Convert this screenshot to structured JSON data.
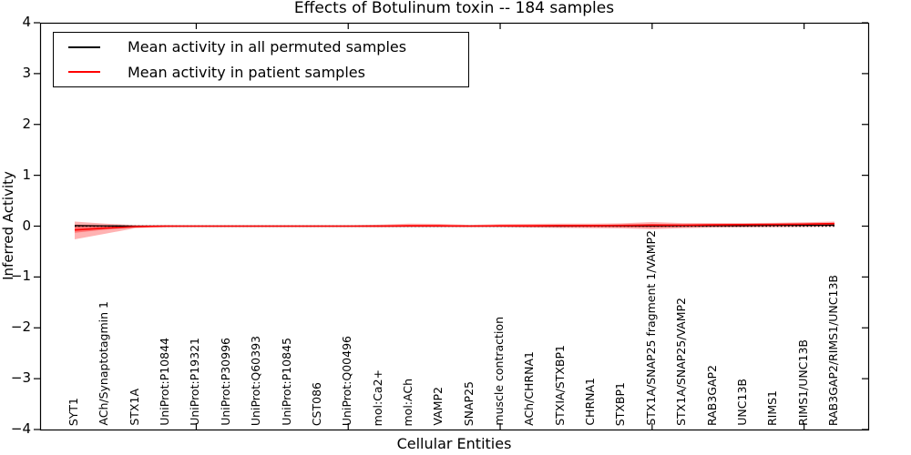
{
  "title": "Effects of Botulinum toxin -- 184 samples",
  "axes": {
    "x_label": "Cellular Entities",
    "y_label": "Inferred Activity",
    "y_ticks": [
      "4",
      "3",
      "2",
      "1",
      "0",
      "−1",
      "−2",
      "−3",
      "−4"
    ]
  },
  "legend": {
    "items": [
      {
        "label": "Mean activity in all permuted samples",
        "color": "#000000"
      },
      {
        "label": "Mean activity in patient samples",
        "color": "#ff0000"
      }
    ]
  },
  "chart_data": {
    "type": "line",
    "title": "Effects of Botulinum toxin -- 184 samples",
    "xlabel": "Cellular Entities",
    "ylabel": "Inferred Activity",
    "ylim": [
      -4,
      4
    ],
    "grid": false,
    "legend_position": "upper left",
    "categories": [
      "SYT1",
      "ACh/Synaptotagmin 1",
      "STX1A",
      "UniProt:P10844",
      "UniProt:P19321",
      "UniProt:P30996",
      "UniProt:Q60393",
      "UniProt:P10845",
      "CST086",
      "UniProt:Q00496",
      "mol:Ca2+",
      "mol:ACh",
      "VAMP2",
      "SNAP25",
      "muscle contraction",
      "ACh/CHRNA1",
      "STXIA/STXBP1",
      "CHRNA1",
      "STXBP1",
      "STX1A/SNAP25 fragment 1/VAMP2",
      "STX1A/SNAP25/VAMP2",
      "RAB3GAP2",
      "UNC13B",
      "RIMS1",
      "RIMS1/UNC13B",
      "RAB3GAP2/RIMS1/UNC13B"
    ],
    "x_major_tick_indices": [
      4,
      9,
      14,
      19,
      24
    ],
    "series": [
      {
        "name": "Mean activity in all permuted samples",
        "color": "#000000",
        "values": [
          0.01,
          0.005,
          0,
          0,
          0,
          0,
          0,
          0,
          0,
          0,
          0,
          0,
          0,
          0,
          0,
          0,
          0,
          0.005,
          0.005,
          0.005,
          0.01,
          0.01,
          0.01,
          0.015,
          0.015,
          0.02
        ]
      },
      {
        "name": "Mean activity in patient samples",
        "color": "#ff0000",
        "values": [
          -0.075,
          -0.04,
          -0.01,
          0,
          0,
          0,
          0,
          0,
          0,
          0,
          0,
          0.005,
          0.005,
          0,
          0.005,
          0.005,
          0.01,
          0.01,
          0.015,
          0.02,
          0.02,
          0.025,
          0.03,
          0.035,
          0.04,
          0.05
        ]
      }
    ],
    "band": {
      "color": "#ff0000",
      "outer_opacity": 0.3,
      "inner_opacity": 0.35,
      "upper": [
        0.09,
        0.05,
        0.02,
        0.02,
        0.015,
        0.015,
        0.015,
        0.015,
        0.015,
        0.015,
        0.03,
        0.05,
        0.045,
        0.025,
        0.04,
        0.045,
        0.05,
        0.05,
        0.055,
        0.08,
        0.06,
        0.06,
        0.06,
        0.065,
        0.075,
        0.09
      ],
      "lower": [
        -0.26,
        -0.15,
        -0.04,
        -0.02,
        -0.015,
        -0.015,
        -0.015,
        -0.015,
        -0.015,
        -0.015,
        -0.02,
        -0.02,
        -0.02,
        -0.015,
        -0.02,
        -0.03,
        -0.035,
        -0.04,
        -0.045,
        -0.06,
        -0.04,
        -0.03,
        -0.025,
        -0.02,
        -0.015,
        -0.01
      ],
      "inner_upper": [
        0.03,
        0.02,
        0.005,
        0.01,
        0.008,
        0.008,
        0.008,
        0.008,
        0.008,
        0.008,
        0.015,
        0.025,
        0.022,
        0.012,
        0.02,
        0.022,
        0.025,
        0.025,
        0.03,
        0.045,
        0.035,
        0.04,
        0.04,
        0.045,
        0.055,
        0.065
      ],
      "inner_lower": [
        -0.13,
        -0.07,
        -0.025,
        -0.01,
        -0.008,
        -0.008,
        -0.008,
        -0.008,
        -0.008,
        -0.008,
        -0.01,
        -0.008,
        -0.008,
        -0.008,
        -0.01,
        -0.015,
        -0.018,
        -0.02,
        -0.022,
        -0.03,
        -0.02,
        -0.012,
        -0.008,
        -0.005,
        0,
        0.005
      ]
    },
    "zero_line": {
      "y": 0,
      "style": "dotted",
      "color": "#000000"
    }
  }
}
